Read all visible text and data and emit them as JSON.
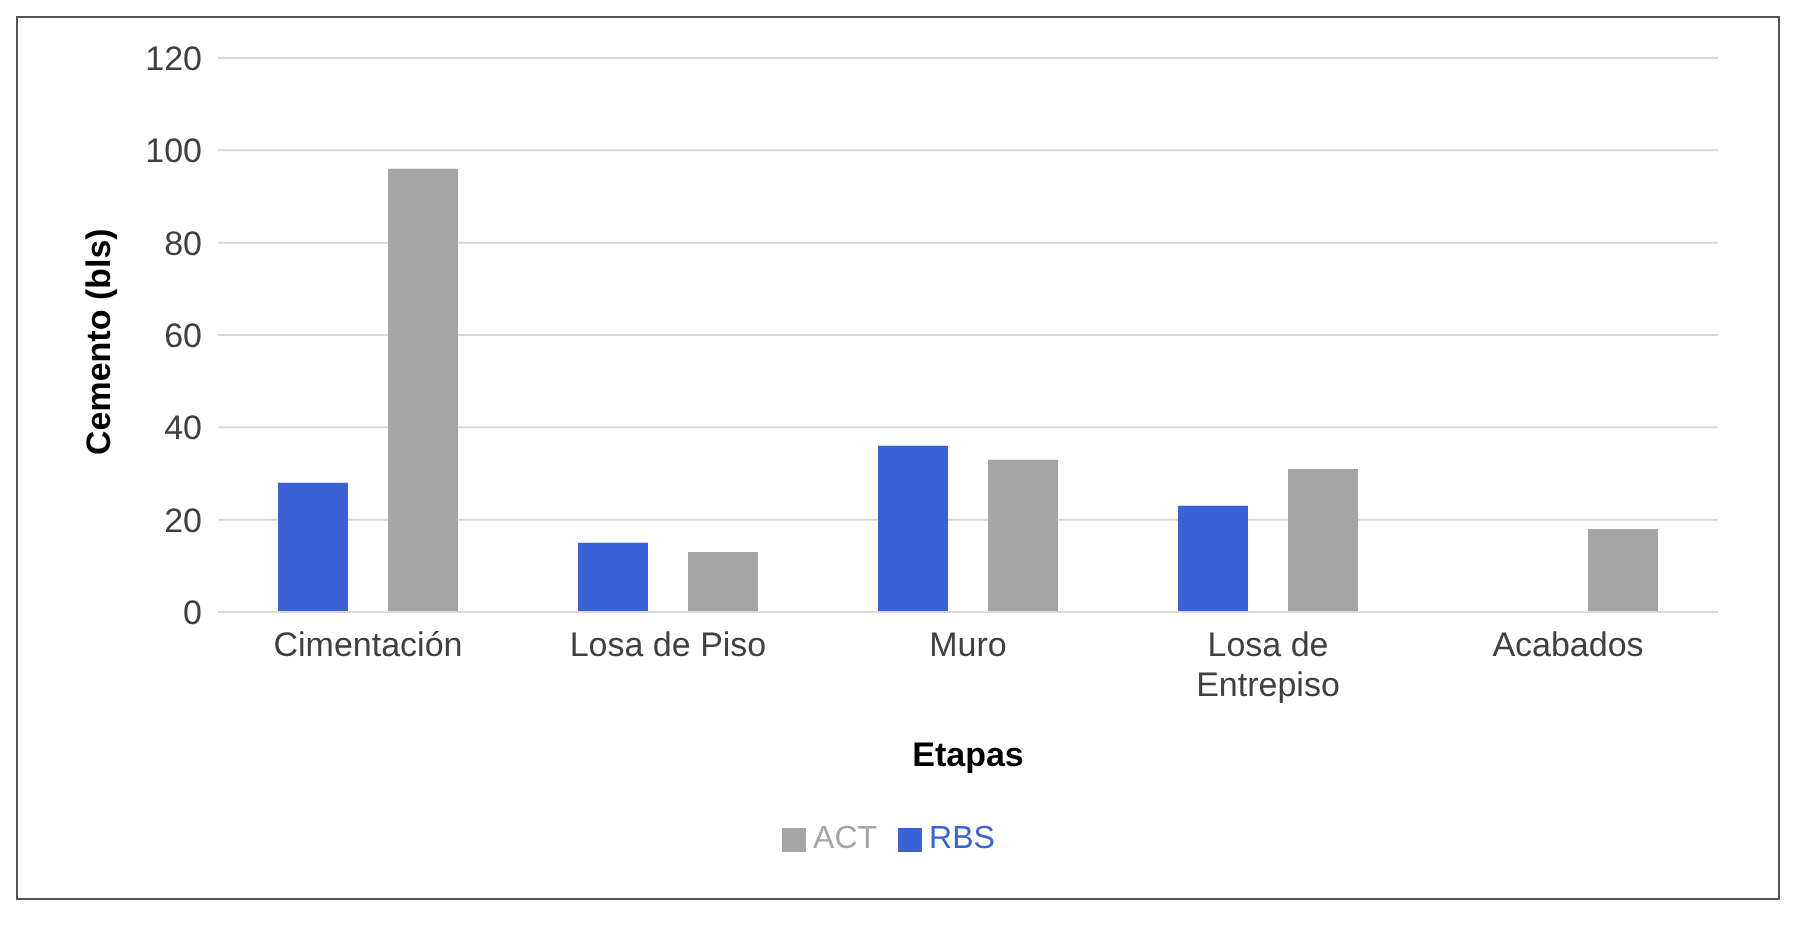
{
  "chart_data": {
    "type": "bar",
    "xlabel": "Etapas",
    "ylabel": "Cemento (bls)",
    "categories": [
      "Cimentación",
      "Losa de Piso",
      "Muro",
      "Losa de Entrepiso",
      "Acabados"
    ],
    "series": [
      {
        "name": "RBS",
        "color": "#3a62d6",
        "values": [
          28,
          15,
          36,
          23,
          null
        ]
      },
      {
        "name": "ACT",
        "color": "#a5a5a5",
        "values": [
          96,
          13,
          33,
          31,
          18
        ]
      }
    ],
    "ylim": [
      0,
      120
    ],
    "yticks": [
      0,
      20,
      40,
      60,
      80,
      100,
      120
    ],
    "grid": "y",
    "legend": "bottom"
  }
}
